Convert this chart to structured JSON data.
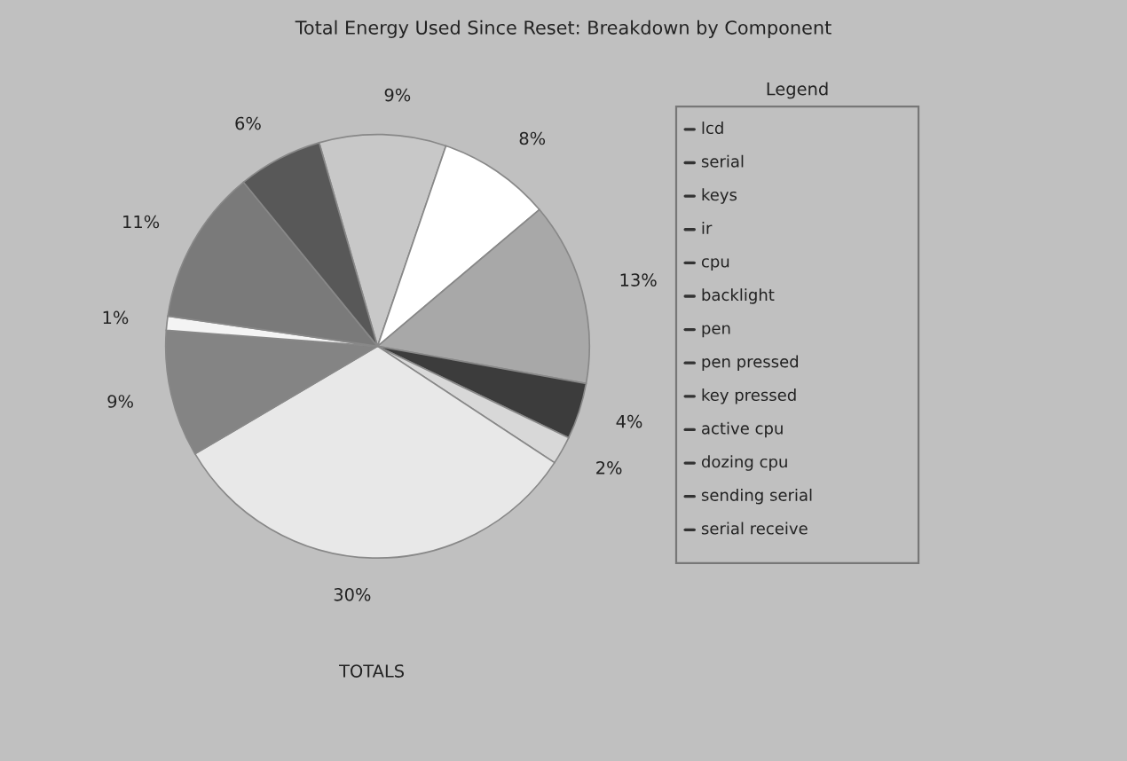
{
  "chart_data": {
    "type": "pie",
    "title": "Total Energy Used Since Reset: Breakdown by Component",
    "categories": [
      null,
      null,
      null,
      null,
      null,
      null,
      null,
      null,
      null,
      null
    ],
    "values": [
      9,
      8,
      13,
      4,
      2,
      30,
      9,
      1,
      11,
      6
    ],
    "value_labels": [
      "9%",
      "8%",
      "13%",
      "4%",
      "2%",
      "30%",
      "9%",
      "1%",
      "11%",
      "6%"
    ],
    "colors": [
      "#c8c8c8",
      "#ffffff",
      "#a8a8a8",
      "#3c3c3c",
      "#d8d8d8",
      "#e8e8e8",
      "#848484",
      "#f4f4f4",
      "#7a7a7a",
      "#585858"
    ],
    "legend_title": "Legend",
    "annotations": [
      "lcd",
      "serial",
      "keys",
      "ir",
      "cpu",
      "backlight",
      "pen",
      "pen pressed",
      "key pressed",
      "active cpu",
      "dozing cpu",
      "sending serial",
      "serial receive",
      "TOTALS"
    ]
  }
}
